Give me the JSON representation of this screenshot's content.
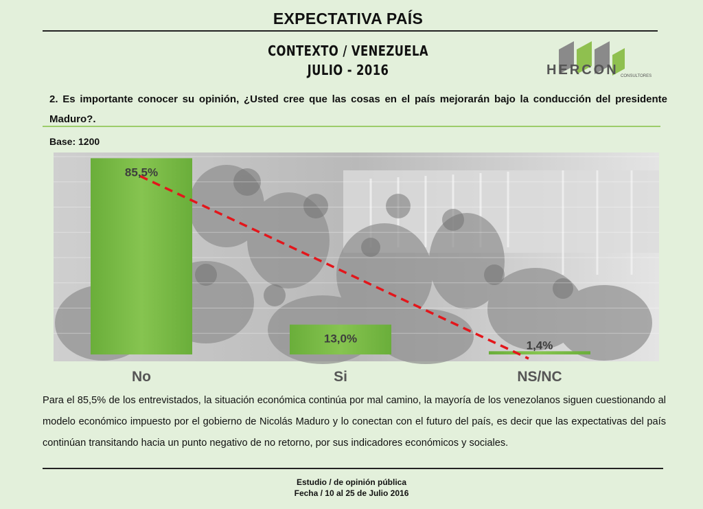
{
  "header": {
    "title": "EXPECTATIVA PAÍS",
    "context_line1": "CONTEXTO / VENEZUELA",
    "context_line2": "JULIO - 2016"
  },
  "logo": {
    "text": "HERCON",
    "subtext": "CONSULTORES"
  },
  "question": "2. Es importante conocer su  opinión, ¿Usted cree que las cosas en el país mejorarán bajo la conducción del presidente Maduro?.",
  "base_label": "Base: 1200",
  "chart_data": {
    "type": "bar",
    "categories": [
      "No",
      "Si",
      "NS/NC"
    ],
    "values": [
      85.5,
      13.0,
      1.4
    ],
    "data_labels": [
      "85,5%",
      "13,0%",
      "1,4%"
    ],
    "ylim": [
      0,
      88
    ],
    "trend_line": {
      "style": "dashed",
      "color": "#e3161b"
    },
    "bar_color": "#76b843",
    "grid": true,
    "legend": "none"
  },
  "analysis": "Para el 85,5% de los entrevistados, la situación económica continúa por mal camino, la mayoría de los venezolanos siguen cuestionando al modelo económico impuesto por el gobierno de Nicolás Maduro y lo conectan con el futuro del país, es decir que las expectativas del país continúan transitando hacia un punto negativo de no retorno, por sus indicadores económicos y sociales.",
  "footer": {
    "line1": "Estudio / de opinión pública",
    "line2": "Fecha / 10 al 25 de  Julio 2016"
  }
}
